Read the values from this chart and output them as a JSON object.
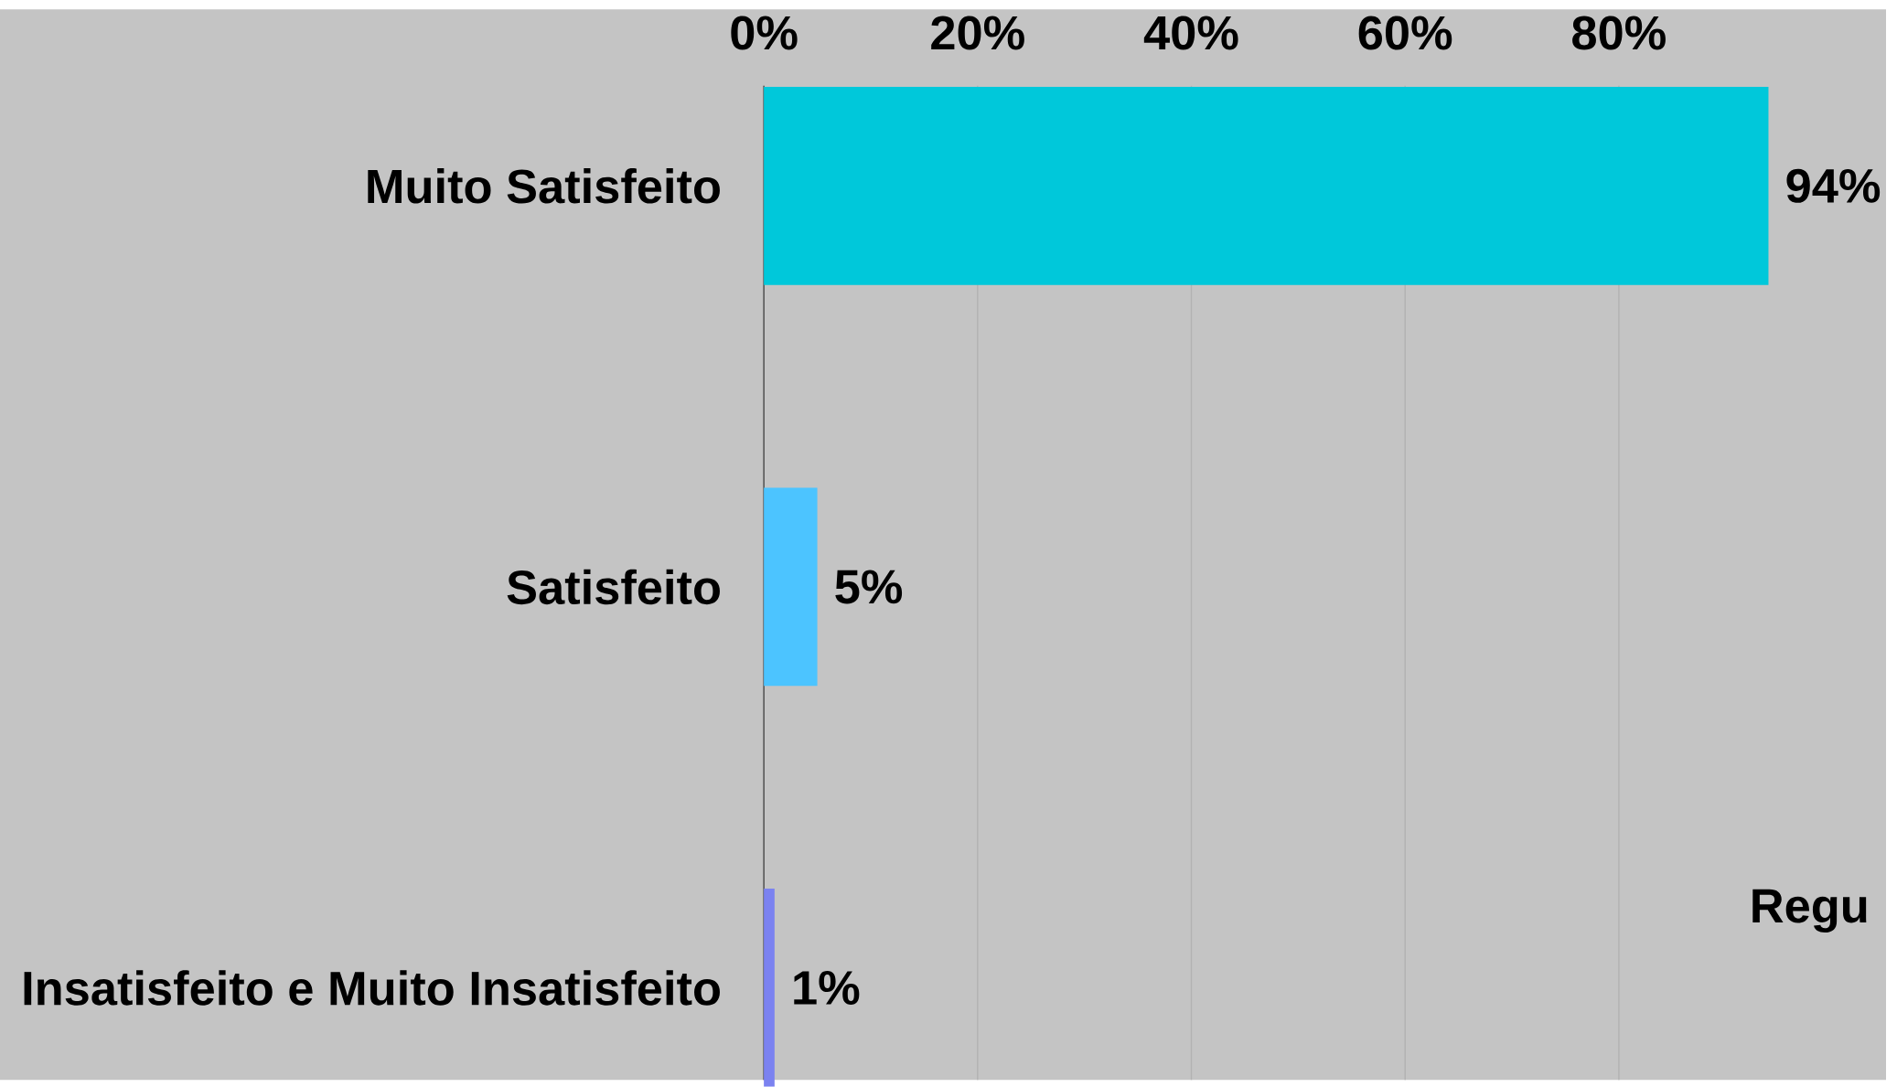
{
  "chart_data": {
    "type": "bar",
    "orientation": "horizontal",
    "categories": [
      "Muito Satisfeito",
      "Satisfeito",
      "Insatisfeito e Muito Insatisfeito"
    ],
    "values": [
      94,
      5,
      1
    ],
    "colors": [
      "#00c8da",
      "#4cc4ff",
      "#7b82f0"
    ],
    "value_labels": [
      "94%",
      "5%",
      "1%"
    ],
    "xlim": [
      0,
      105
    ],
    "xticks": [
      {
        "value": 0,
        "label": "0%"
      },
      {
        "value": 20,
        "label": "20%"
      },
      {
        "value": 40,
        "label": "40%"
      },
      {
        "value": 60,
        "label": "60%"
      },
      {
        "value": 80,
        "label": "80%"
      }
    ],
    "grid": "x",
    "annotations": [
      "Regu"
    ]
  }
}
